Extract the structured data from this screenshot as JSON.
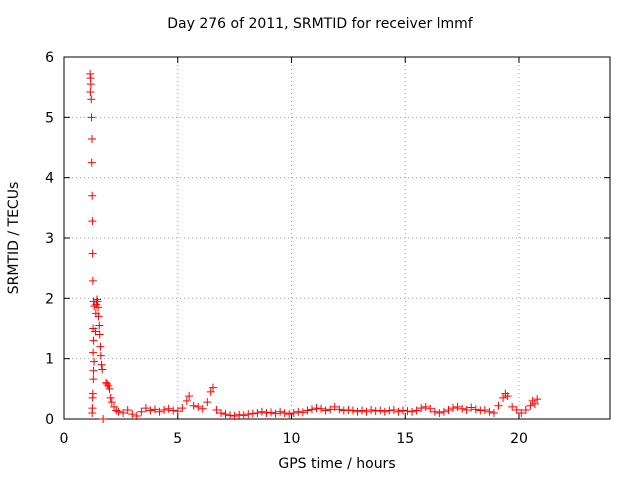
{
  "chart_data": {
    "type": "scatter",
    "title": "Day 276 of 2011, SRMTID for receiver lmmf",
    "xlabel": "GPS time / hours",
    "ylabel": "SRMTID / TECUs",
    "xlim": [
      0,
      24
    ],
    "ylim": [
      0,
      6
    ],
    "xticks": [
      0,
      5,
      10,
      15,
      20
    ],
    "yticks": [
      0,
      1,
      2,
      3,
      4,
      5,
      6
    ],
    "grid": true,
    "marker": "+",
    "series": [
      {
        "color": "#ff0000",
        "points": [
          [
            1.15,
            5.72
          ],
          [
            1.17,
            5.65
          ],
          [
            1.18,
            5.55
          ],
          [
            1.16,
            5.42
          ],
          [
            1.2,
            5.3
          ],
          [
            1.21,
            5.0
          ],
          [
            1.23,
            4.64
          ],
          [
            1.22,
            4.25
          ],
          [
            1.24,
            3.7
          ],
          [
            1.25,
            3.28
          ],
          [
            1.26,
            2.74
          ],
          [
            1.27,
            2.29
          ],
          [
            1.3,
            1.95
          ],
          [
            1.33,
            1.87
          ],
          [
            1.28,
            1.5
          ],
          [
            1.3,
            1.3
          ],
          [
            1.28,
            1.1
          ],
          [
            1.32,
            0.95
          ],
          [
            1.3,
            0.8
          ],
          [
            1.29,
            0.66
          ],
          [
            1.27,
            0.42
          ],
          [
            1.26,
            0.35
          ],
          [
            1.25,
            0.18
          ],
          [
            1.24,
            0.1
          ],
          [
            1.38,
            1.45
          ],
          [
            1.4,
            1.75
          ],
          [
            1.42,
            1.9
          ],
          [
            1.45,
            1.98
          ],
          [
            1.47,
            1.95
          ],
          [
            1.5,
            1.85
          ],
          [
            1.52,
            1.7
          ],
          [
            1.55,
            1.55
          ],
          [
            1.57,
            1.4
          ],
          [
            1.6,
            1.2
          ],
          [
            1.62,
            1.05
          ],
          [
            1.65,
            0.9
          ],
          [
            1.68,
            0.82
          ],
          [
            1.72,
            0.0
          ],
          [
            1.85,
            0.6
          ],
          [
            1.9,
            0.58
          ],
          [
            1.95,
            0.55
          ],
          [
            2.0,
            0.5
          ],
          [
            2.05,
            0.35
          ],
          [
            2.1,
            0.28
          ],
          [
            2.2,
            0.2
          ],
          [
            2.3,
            0.14
          ],
          [
            2.4,
            0.12
          ],
          [
            2.6,
            0.1
          ],
          [
            2.8,
            0.15
          ],
          [
            3.0,
            0.08
          ],
          [
            3.2,
            0.05
          ],
          [
            3.4,
            0.12
          ],
          [
            3.6,
            0.18
          ],
          [
            3.8,
            0.14
          ],
          [
            4.0,
            0.16
          ],
          [
            4.2,
            0.12
          ],
          [
            4.4,
            0.15
          ],
          [
            4.6,
            0.17
          ],
          [
            4.8,
            0.14
          ],
          [
            5.0,
            0.13
          ],
          [
            5.2,
            0.18
          ],
          [
            5.4,
            0.3
          ],
          [
            5.5,
            0.38
          ],
          [
            5.7,
            0.22
          ],
          [
            5.9,
            0.2
          ],
          [
            6.1,
            0.17
          ],
          [
            6.3,
            0.28
          ],
          [
            6.45,
            0.45
          ],
          [
            6.55,
            0.52
          ],
          [
            6.7,
            0.15
          ],
          [
            6.9,
            0.1
          ],
          [
            7.1,
            0.08
          ],
          [
            7.3,
            0.06
          ],
          [
            7.5,
            0.05
          ],
          [
            7.7,
            0.07
          ],
          [
            7.9,
            0.06
          ],
          [
            8.1,
            0.08
          ],
          [
            8.3,
            0.09
          ],
          [
            8.5,
            0.1
          ],
          [
            8.7,
            0.12
          ],
          [
            8.9,
            0.1
          ],
          [
            9.1,
            0.11
          ],
          [
            9.3,
            0.09
          ],
          [
            9.5,
            0.12
          ],
          [
            9.7,
            0.1
          ],
          [
            9.9,
            0.08
          ],
          [
            10.1,
            0.1
          ],
          [
            10.3,
            0.12
          ],
          [
            10.5,
            0.11
          ],
          [
            10.7,
            0.14
          ],
          [
            10.9,
            0.16
          ],
          [
            11.1,
            0.18
          ],
          [
            11.3,
            0.17
          ],
          [
            11.5,
            0.14
          ],
          [
            11.7,
            0.16
          ],
          [
            11.9,
            0.2
          ],
          [
            12.1,
            0.16
          ],
          [
            12.3,
            0.14
          ],
          [
            12.5,
            0.15
          ],
          [
            12.7,
            0.14
          ],
          [
            12.9,
            0.12
          ],
          [
            13.1,
            0.14
          ],
          [
            13.3,
            0.12
          ],
          [
            13.5,
            0.15
          ],
          [
            13.7,
            0.13
          ],
          [
            13.9,
            0.14
          ],
          [
            14.1,
            0.12
          ],
          [
            14.3,
            0.14
          ],
          [
            14.5,
            0.15
          ],
          [
            14.7,
            0.12
          ],
          [
            14.9,
            0.14
          ],
          [
            15.1,
            0.13
          ],
          [
            15.3,
            0.12
          ],
          [
            15.5,
            0.14
          ],
          [
            15.7,
            0.18
          ],
          [
            15.9,
            0.2
          ],
          [
            16.1,
            0.17
          ],
          [
            16.3,
            0.12
          ],
          [
            16.5,
            0.1
          ],
          [
            16.7,
            0.12
          ],
          [
            16.9,
            0.15
          ],
          [
            17.1,
            0.18
          ],
          [
            17.3,
            0.2
          ],
          [
            17.5,
            0.17
          ],
          [
            17.7,
            0.15
          ],
          [
            17.9,
            0.19
          ],
          [
            18.1,
            0.16
          ],
          [
            18.3,
            0.14
          ],
          [
            18.5,
            0.15
          ],
          [
            18.7,
            0.12
          ],
          [
            18.9,
            0.1
          ],
          [
            19.1,
            0.22
          ],
          [
            19.3,
            0.35
          ],
          [
            19.4,
            0.42
          ],
          [
            19.5,
            0.38
          ],
          [
            19.7,
            0.2
          ],
          [
            19.9,
            0.15
          ],
          [
            20.1,
            0.1
          ],
          [
            20.3,
            0.15
          ],
          [
            20.5,
            0.22
          ],
          [
            20.6,
            0.3
          ],
          [
            20.7,
            0.25
          ],
          [
            20.8,
            0.33
          ]
        ]
      }
    ]
  }
}
